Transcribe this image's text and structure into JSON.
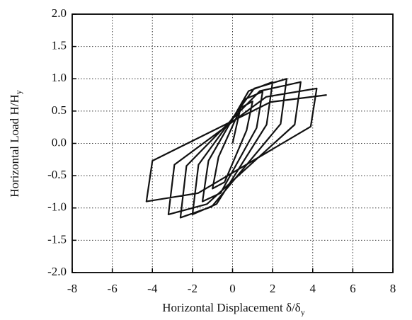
{
  "chart_data": {
    "type": "line",
    "xlabel": {
      "text": "Horizontal Displacement δ/δ",
      "subscript": "y"
    },
    "ylabel": {
      "text": "Horizontal Load H/H",
      "subscript": "y"
    },
    "xlim": [
      -8,
      8
    ],
    "xticks": [
      -8,
      -6,
      -4,
      -2,
      0,
      2,
      4,
      6,
      8
    ],
    "ylim": [
      -2,
      2
    ],
    "yticks": [
      {
        "value": -2,
        "label": "-2.0"
      },
      {
        "value": -1.5,
        "label": "-1.5"
      },
      {
        "value": -1,
        "label": "-1.0"
      },
      {
        "value": -0.5,
        "label": "-0.5"
      },
      {
        "value": 0,
        "label": "0.0"
      },
      {
        "value": 0.5,
        "label": "0.5"
      },
      {
        "value": 1,
        "label": "1.0"
      },
      {
        "value": 1.5,
        "label": "1.5"
      },
      {
        "value": 2,
        "label": "2.0"
      }
    ],
    "grid": true,
    "series": [
      {
        "color": "#111111",
        "x": [
          0,
          0.4,
          1,
          0.7,
          -0.4,
          -1,
          -0.7,
          0.6,
          1.5,
          1.2,
          -0.6,
          -1.5,
          -1.2,
          0.8,
          2,
          1.7,
          -0.8,
          -2,
          -1.7,
          1.08,
          2.7,
          2.4,
          -1.04,
          -2.6,
          -2.3,
          1.36,
          3.4,
          3.1,
          -1.28,
          -3.2,
          -2.9,
          1.68,
          4.2,
          3.9,
          -1.72,
          -4.3,
          -4.0,
          1.9,
          4.7
        ],
        "values": [
          0,
          0.55,
          0.65,
          0.2,
          -0.6,
          -0.7,
          -0.21,
          0.68,
          0.8,
          0.24,
          -0.77,
          -0.9,
          -0.27,
          0.81,
          0.95,
          0.29,
          -0.94,
          -1.1,
          -0.33,
          0.85,
          1.0,
          0.3,
          -0.98,
          -1.15,
          -0.35,
          0.81,
          0.95,
          0.29,
          -0.94,
          -1.1,
          -0.33,
          0.72,
          0.85,
          0.26,
          -0.77,
          -0.9,
          -0.27,
          0.64,
          0.75
        ]
      }
    ]
  }
}
